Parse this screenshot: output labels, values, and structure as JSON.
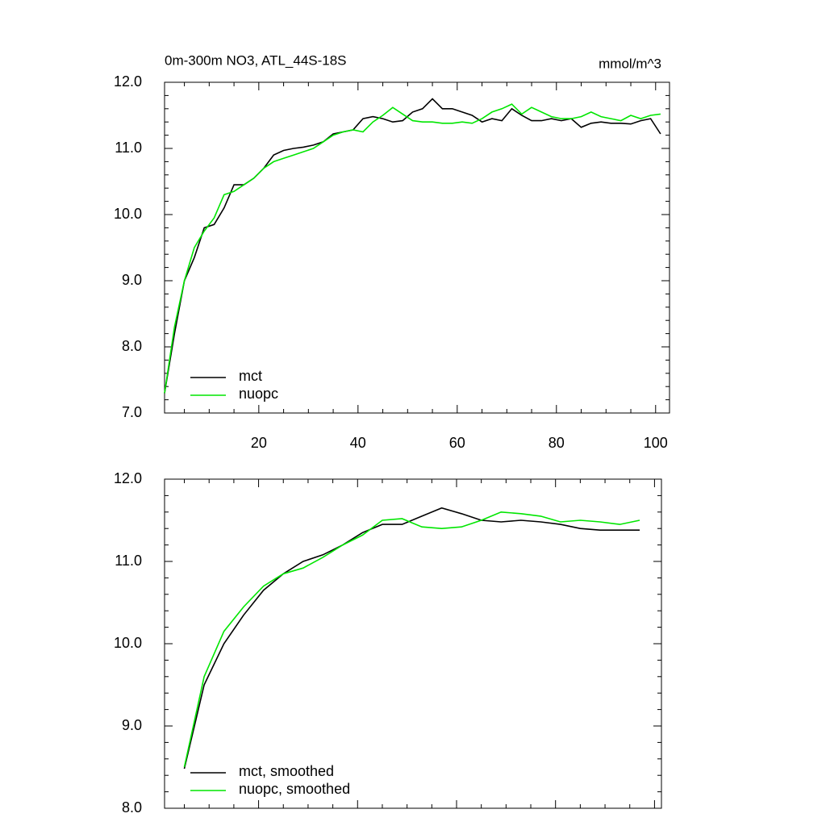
{
  "chart_data": [
    {
      "type": "line",
      "title": "0m-300m NO3, ATL_44S-18S",
      "subtitle": "mmol/m^3",
      "x": [
        1,
        3,
        5,
        7,
        9,
        11,
        13,
        15,
        17,
        19,
        21,
        23,
        25,
        27,
        29,
        31,
        33,
        35,
        37,
        39,
        41,
        43,
        45,
        47,
        49,
        51,
        53,
        55,
        57,
        59,
        61,
        63,
        65,
        67,
        69,
        71,
        73,
        75,
        77,
        79,
        81,
        83,
        85,
        87,
        89,
        91,
        93,
        95,
        97,
        99,
        101
      ],
      "series": [
        {
          "name": "mct",
          "color": "#000000",
          "values": [
            7.3,
            8.2,
            9.0,
            9.35,
            9.8,
            9.85,
            10.1,
            10.45,
            10.45,
            10.55,
            10.7,
            10.9,
            10.97,
            11.0,
            11.02,
            11.05,
            11.1,
            11.22,
            11.25,
            11.28,
            11.45,
            11.48,
            11.45,
            11.4,
            11.42,
            11.55,
            11.6,
            11.75,
            11.6,
            11.6,
            11.55,
            11.5,
            11.4,
            11.45,
            11.42,
            11.6,
            11.5,
            11.42,
            11.42,
            11.45,
            11.42,
            11.45,
            11.32,
            11.38,
            11.4,
            11.38,
            11.38,
            11.37,
            11.42,
            11.45,
            11.22
          ]
        },
        {
          "name": "nuopc",
          "color": "#00e600",
          "values": [
            7.3,
            8.3,
            9.0,
            9.5,
            9.75,
            9.95,
            10.3,
            10.35,
            10.45,
            10.55,
            10.7,
            10.8,
            10.85,
            10.9,
            10.95,
            11.0,
            11.1,
            11.2,
            11.25,
            11.28,
            11.25,
            11.4,
            11.5,
            11.62,
            11.52,
            11.42,
            11.4,
            11.4,
            11.38,
            11.38,
            11.4,
            11.38,
            11.45,
            11.55,
            11.6,
            11.67,
            11.52,
            11.62,
            11.55,
            11.48,
            11.45,
            11.45,
            11.48,
            11.55,
            11.48,
            11.45,
            11.42,
            11.5,
            11.45,
            11.5,
            11.52
          ]
        }
      ],
      "xlim": [
        1,
        102.8
      ],
      "xticks": [
        20,
        40,
        60,
        80,
        100
      ],
      "ylim": [
        7,
        12
      ],
      "yticks": [
        {
          "value": 7,
          "label": "7.0"
        },
        {
          "value": 8,
          "label": "8.0"
        },
        {
          "value": 9,
          "label": "9.0"
        },
        {
          "value": 10,
          "label": "10.0"
        },
        {
          "value": 11,
          "label": "11.0"
        },
        {
          "value": 12,
          "label": "12.0"
        }
      ],
      "legend": "lower left"
    },
    {
      "type": "line",
      "x": [
        5,
        9,
        13,
        17,
        21,
        25,
        29,
        33,
        37,
        41,
        45,
        49,
        53,
        57,
        61,
        65,
        69,
        73,
        77,
        81,
        85,
        89,
        93,
        97
      ],
      "series": [
        {
          "name": "mct, smoothed",
          "color": "#000000",
          "values": [
            8.48,
            9.5,
            10.0,
            10.35,
            10.65,
            10.85,
            11.0,
            11.08,
            11.2,
            11.35,
            11.45,
            11.45,
            11.55,
            11.65,
            11.58,
            11.5,
            11.48,
            11.5,
            11.48,
            11.45,
            11.4,
            11.38,
            11.38,
            11.38
          ]
        },
        {
          "name": "nuopc, smoothed",
          "color": "#00e600",
          "values": [
            8.5,
            9.6,
            10.15,
            10.45,
            10.7,
            10.85,
            10.92,
            11.05,
            11.2,
            11.32,
            11.5,
            11.52,
            11.42,
            11.4,
            11.42,
            11.5,
            11.6,
            11.58,
            11.55,
            11.48,
            11.5,
            11.48,
            11.45,
            11.5
          ]
        }
      ],
      "xlim": [
        1,
        101.4
      ],
      "xticks": [
        20,
        40,
        60,
        80,
        100
      ],
      "xtick_labels": false,
      "ylim": [
        8,
        12
      ],
      "yticks": [
        {
          "value": 8,
          "label": "8.0"
        },
        {
          "value": 9,
          "label": "9.0"
        },
        {
          "value": 10,
          "label": "10.0"
        },
        {
          "value": 11,
          "label": "11.0"
        },
        {
          "value": 12,
          "label": "12.0"
        }
      ],
      "legend": "lower left"
    }
  ]
}
